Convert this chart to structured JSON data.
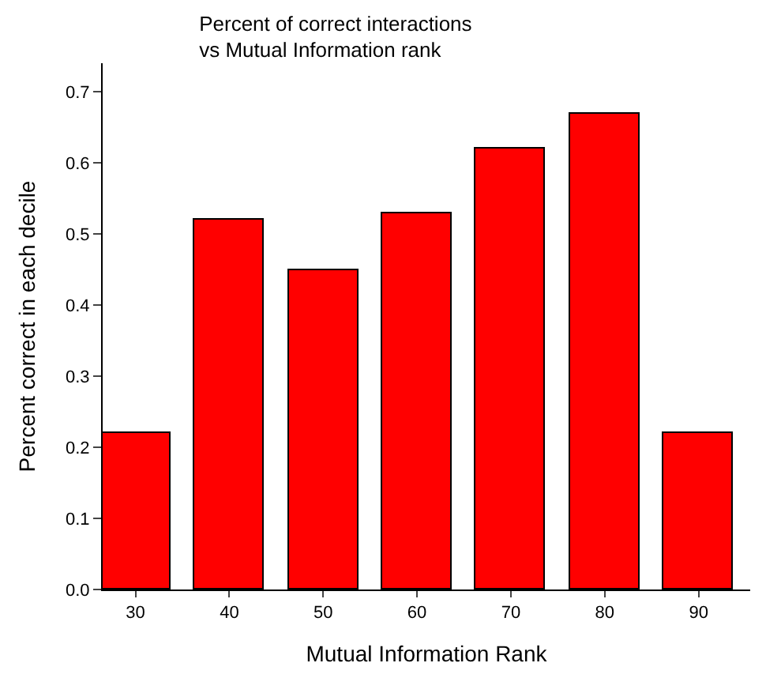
{
  "chart_data": {
    "type": "bar",
    "title": "Percent of correct interactions\nvs Mutual Information rank",
    "xlabel": "Mutual Information Rank",
    "ylabel": "Percent correct in each decile",
    "x": [
      30,
      40,
      50,
      60,
      70,
      80,
      90
    ],
    "values": [
      0.22,
      0.52,
      0.45,
      0.53,
      0.62,
      0.67,
      0.22
    ],
    "color": "#ff0000",
    "xlim": [
      26.5,
      95.5
    ],
    "xticks": [
      30,
      40,
      50,
      60,
      70,
      80,
      90
    ],
    "ylim": [
      0,
      0.74
    ],
    "yticks": [
      {
        "value": 0,
        "label": "0.0"
      },
      0.1,
      0.2,
      0.3,
      0.4,
      0.5,
      0.6,
      0.7
    ]
  }
}
